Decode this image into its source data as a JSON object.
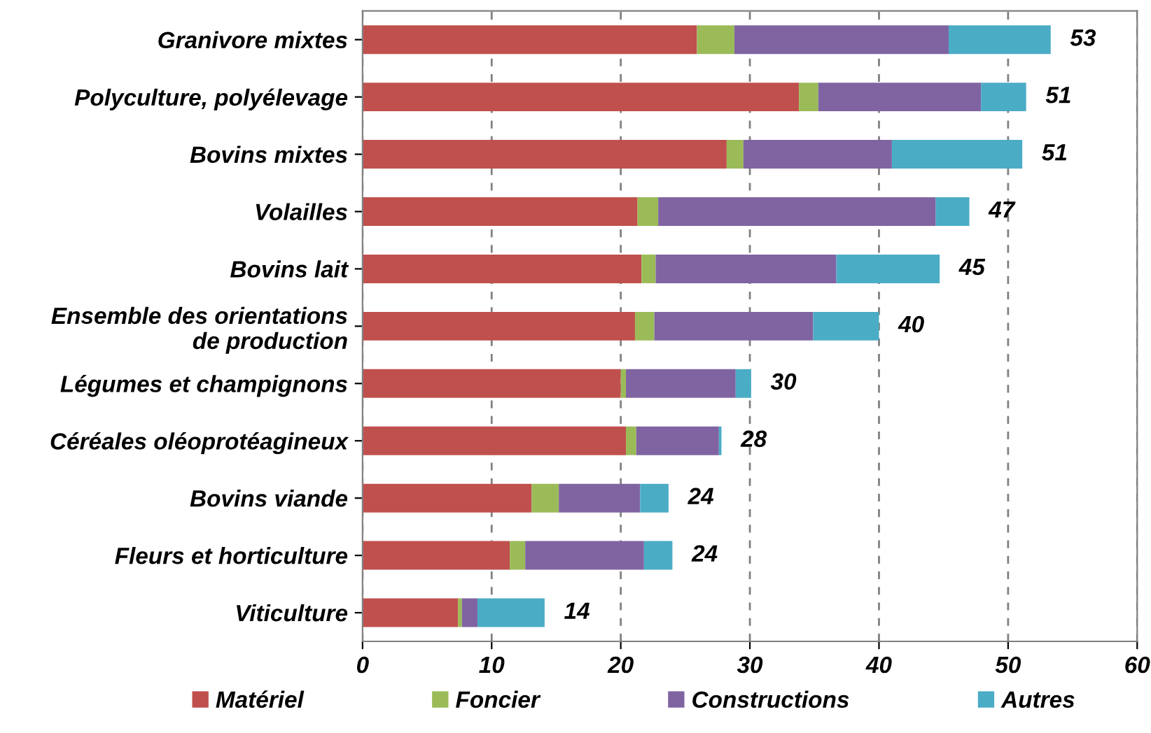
{
  "chart_data": {
    "type": "bar",
    "orientation": "horizontal",
    "stacked": true,
    "categories": [
      "Granivore mixtes",
      "Polyculture, polyélevage",
      "Bovins mixtes",
      "Volailles",
      "Bovins lait",
      "Ensemble des orientations\nde production",
      "Légumes et champignons",
      "Céréales oléoprotéagineux",
      "Bovins viande",
      "Fleurs et horticulture",
      "Viticulture"
    ],
    "series": [
      {
        "name": "Matériel",
        "color": "#c0504d",
        "values": [
          25.9,
          33.8,
          28.2,
          21.3,
          21.6,
          21.1,
          20.0,
          20.4,
          13.1,
          11.4,
          7.4
        ]
      },
      {
        "name": "Foncier",
        "color": "#9bbb59",
        "values": [
          2.9,
          1.5,
          1.3,
          1.6,
          1.1,
          1.5,
          0.4,
          0.8,
          2.1,
          1.2,
          0.3
        ]
      },
      {
        "name": "Constructions",
        "color": "#8064a2",
        "values": [
          16.6,
          12.6,
          11.5,
          21.5,
          14.0,
          12.3,
          8.5,
          6.4,
          6.3,
          9.2,
          1.2
        ]
      },
      {
        "name": "Autres",
        "color": "#4bacc6",
        "values": [
          7.9,
          3.5,
          10.1,
          2.6,
          8.0,
          5.1,
          1.2,
          0.2,
          2.2,
          2.2,
          5.2
        ]
      }
    ],
    "totals": [
      "53",
      "51",
      "51",
      "47",
      "45",
      "40",
      "30",
      "28",
      "24",
      "24",
      "14"
    ],
    "xlim": [
      0,
      60
    ],
    "xticks": [
      0,
      10,
      20,
      30,
      40,
      50,
      60
    ],
    "grid": "x",
    "legend": "bottom"
  }
}
